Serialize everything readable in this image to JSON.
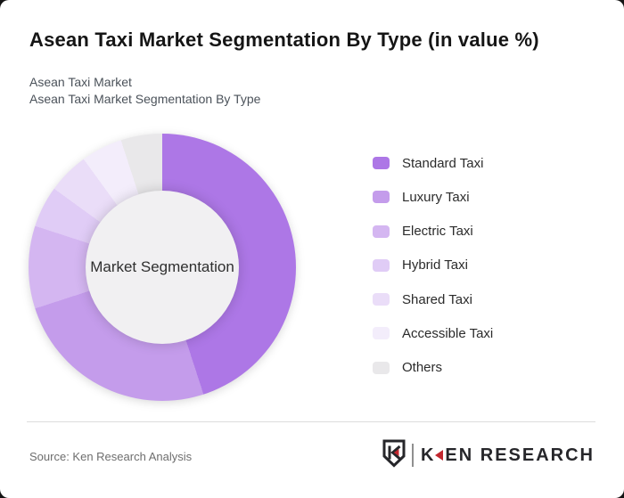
{
  "header": {
    "title": "Asean Taxi Market Segmentation By Type (in value %)",
    "subtitle_line1": "Asean Taxi Market",
    "subtitle_line2": "Asean Taxi Market Segmentation By Type"
  },
  "chart_data": {
    "type": "pie",
    "variant": "donut",
    "title": "Asean Taxi Market Segmentation By Type (in value %)",
    "center_label": "Market Segmentation",
    "value_unit": "percent of market value",
    "start_angle_deg": 0,
    "direction": "clockwise",
    "legend_position": "right",
    "segments": [
      {
        "label": "Standard Taxi",
        "value": 45,
        "color": "#ad77e6"
      },
      {
        "label": "Luxury Taxi",
        "value": 25,
        "color": "#c49ceb"
      },
      {
        "label": "Electric Taxi",
        "value": 10,
        "color": "#d4b6f1"
      },
      {
        "label": "Hybrid Taxi",
        "value": 5,
        "color": "#e0ccf6"
      },
      {
        "label": "Shared Taxi",
        "value": 5,
        "color": "#eaddf8"
      },
      {
        "label": "Accessible Taxi",
        "value": 5,
        "color": "#f3edfb"
      },
      {
        "label": "Others",
        "value": 5,
        "color": "#e9e8ea"
      }
    ]
  },
  "footer": {
    "source": "Source: Ken Research Analysis",
    "brand_wordmark": "KEN RESEARCH"
  },
  "colors": {
    "card_bg": "#ffffff",
    "center_circle": "#f1f0f2",
    "divider": "#dcdcdc",
    "brand_red": "#c2272f",
    "brand_dark": "#26262a"
  }
}
